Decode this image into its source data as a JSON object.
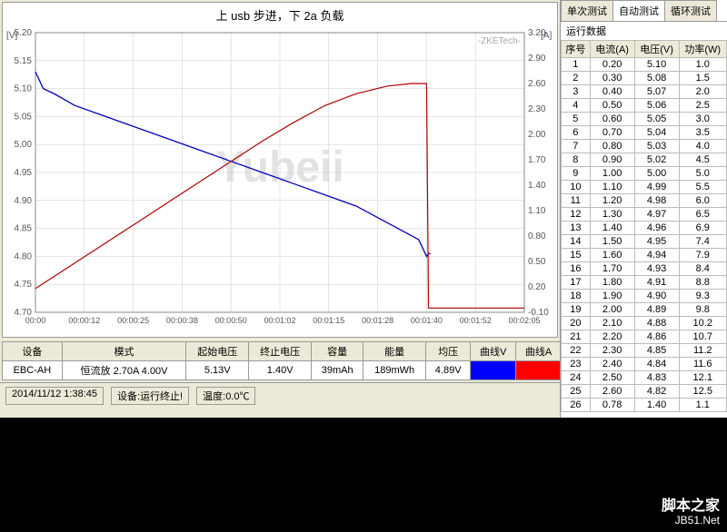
{
  "chart": {
    "title": "上 usb 步进，下 2a 负载",
    "watermark": "Yubeii",
    "brand": "-ZKETech-",
    "left_axis": {
      "label": "[V]",
      "min": 4.7,
      "max": 5.2,
      "step": 0.05
    },
    "right_axis": {
      "label": "[A]",
      "min": -0.1,
      "max": 3.2,
      "step": 0.3
    },
    "x_axis": {
      "ticks": [
        "00:00",
        "00:00:12",
        "00:00:25",
        "00:00:38",
        "00:00:50",
        "00:01:02",
        "00:01:15",
        "00:01:28",
        "00:01:40",
        "00:01:52",
        "00:02:05"
      ]
    },
    "grid_color": "#cccccc",
    "series": [
      {
        "name": "voltage",
        "color": "#0000c0",
        "width": 1.3,
        "points": [
          [
            0,
            5.13
          ],
          [
            2,
            5.1
          ],
          [
            5,
            5.09
          ],
          [
            10,
            5.07
          ],
          [
            18,
            5.05
          ],
          [
            26,
            5.03
          ],
          [
            34,
            5.01
          ],
          [
            42,
            4.99
          ],
          [
            50,
            4.97
          ],
          [
            58,
            4.95
          ],
          [
            66,
            4.93
          ],
          [
            74,
            4.91
          ],
          [
            82,
            4.89
          ],
          [
            90,
            4.86
          ],
          [
            98,
            4.83
          ],
          [
            100,
            4.8
          ],
          [
            100.5,
            4.805
          ],
          [
            101,
            4.805
          ]
        ]
      },
      {
        "name": "current",
        "color": "#b00000",
        "width": 1.2,
        "points": [
          [
            0,
            0.18
          ],
          [
            4,
            0.3
          ],
          [
            10,
            0.48
          ],
          [
            18,
            0.72
          ],
          [
            26,
            0.96
          ],
          [
            34,
            1.2
          ],
          [
            42,
            1.44
          ],
          [
            50,
            1.68
          ],
          [
            58,
            1.92
          ],
          [
            66,
            2.14
          ],
          [
            74,
            2.34
          ],
          [
            82,
            2.48
          ],
          [
            90,
            2.57
          ],
          [
            96,
            2.6
          ],
          [
            100,
            2.6
          ],
          [
            100.5,
            -0.05
          ],
          [
            125,
            -0.05
          ]
        ]
      }
    ],
    "x_min": 0,
    "x_max": 125
  },
  "summary": {
    "headers": [
      "设备",
      "模式",
      "起始电压",
      "终止电压",
      "容量",
      "能量",
      "均压",
      "曲线V",
      "曲线A"
    ],
    "row": {
      "device": "EBC-AH",
      "mode": "恒流放 2.70A 4.00V",
      "v_start": "5.13V",
      "v_end": "1.40V",
      "capacity": "39mAh",
      "energy": "189mWh",
      "v_avg": "4.89V"
    }
  },
  "status": {
    "time": "2014/11/12 1:38:45",
    "device_state_label": "设备:",
    "device_state": "运行终止!",
    "temp_label": "温度:",
    "temp": "0.0℃"
  },
  "tabs": [
    "单次测试",
    "自动测试",
    "循环测试"
  ],
  "active_tab": 1,
  "data_section_label": "运行数据",
  "data_headers": [
    "序号",
    "电流(A)",
    "电压(V)",
    "功率(W)"
  ],
  "data_rows": [
    [
      1,
      "0.20",
      "5.10",
      "1.0"
    ],
    [
      2,
      "0.30",
      "5.08",
      "1.5"
    ],
    [
      3,
      "0.40",
      "5.07",
      "2.0"
    ],
    [
      4,
      "0.50",
      "5.06",
      "2.5"
    ],
    [
      5,
      "0.60",
      "5.05",
      "3.0"
    ],
    [
      6,
      "0.70",
      "5.04",
      "3.5"
    ],
    [
      7,
      "0.80",
      "5.03",
      "4.0"
    ],
    [
      8,
      "0.90",
      "5.02",
      "4.5"
    ],
    [
      9,
      "1.00",
      "5.00",
      "5.0"
    ],
    [
      10,
      "1.10",
      "4.99",
      "5.5"
    ],
    [
      11,
      "1.20",
      "4.98",
      "6.0"
    ],
    [
      12,
      "1.30",
      "4.97",
      "6.5"
    ],
    [
      13,
      "1.40",
      "4.96",
      "6.9"
    ],
    [
      14,
      "1.50",
      "4.95",
      "7.4"
    ],
    [
      15,
      "1.60",
      "4.94",
      "7.9"
    ],
    [
      16,
      "1.70",
      "4.93",
      "8.4"
    ],
    [
      17,
      "1.80",
      "4.91",
      "8.8"
    ],
    [
      18,
      "1.90",
      "4.90",
      "9.3"
    ],
    [
      19,
      "2.00",
      "4.89",
      "9.8"
    ],
    [
      20,
      "2.10",
      "4.88",
      "10.2"
    ],
    [
      21,
      "2.20",
      "4.86",
      "10.7"
    ],
    [
      22,
      "2.30",
      "4.85",
      "11.2"
    ],
    [
      23,
      "2.40",
      "4.84",
      "11.6"
    ],
    [
      24,
      "2.50",
      "4.83",
      "12.1"
    ],
    [
      25,
      "2.60",
      "4.82",
      "12.5"
    ],
    [
      26,
      "0.78",
      "1.40",
      "1.1"
    ]
  ],
  "footer": {
    "cn": "脚本之家",
    "url": "JB51.Net"
  }
}
